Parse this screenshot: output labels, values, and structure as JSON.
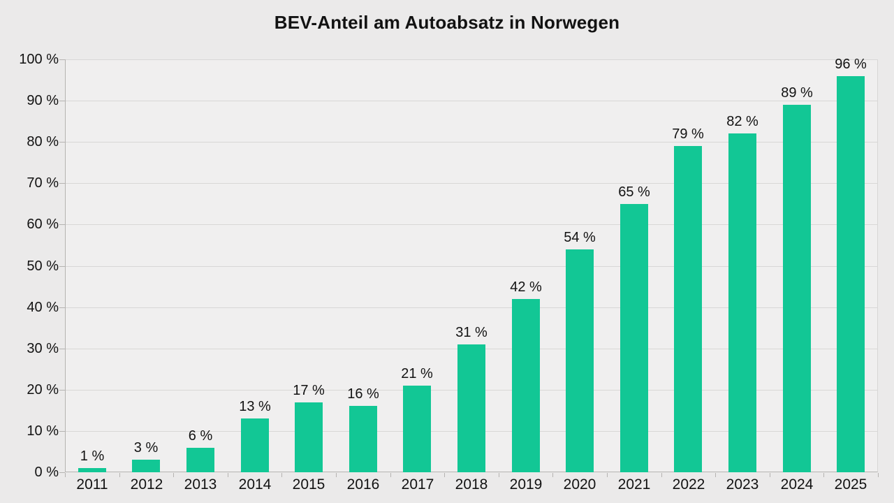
{
  "chart_data": {
    "type": "bar",
    "title": "BEV-Anteil am Autoabsatz in Norwegen",
    "categories": [
      "2011",
      "2012",
      "2013",
      "2014",
      "2015",
      "2016",
      "2017",
      "2018",
      "2019",
      "2020",
      "2021",
      "2022",
      "2023",
      "2024",
      "2025"
    ],
    "values": [
      1,
      3,
      6,
      13,
      17,
      16,
      21,
      31,
      42,
      54,
      65,
      79,
      82,
      89,
      96
    ],
    "unit": "%",
    "value_labels": [
      "1 %",
      "3 %",
      "6 %",
      "13 %",
      "17 %",
      "16 %",
      "21 %",
      "31 %",
      "42 %",
      "54 %",
      "65 %",
      "79 %",
      "82 %",
      "89 %",
      "96 %"
    ],
    "xlabel": "",
    "ylabel": "",
    "ylim": [
      0,
      100
    ],
    "y_tick_step": 10,
    "y_tick_labels": [
      "0 %",
      "10 %",
      "20 %",
      "30 %",
      "40 %",
      "50 %",
      "60 %",
      "70 %",
      "80 %",
      "90 %",
      "100 %"
    ],
    "grid": true,
    "legend_position": "none",
    "colors": {
      "bar": "#12C795",
      "background": "#EBEAEA",
      "plot_background": "#F0EFEF",
      "gridline": "#D8D7D6",
      "axis": "#B5B3B1",
      "text": "#121212"
    }
  }
}
